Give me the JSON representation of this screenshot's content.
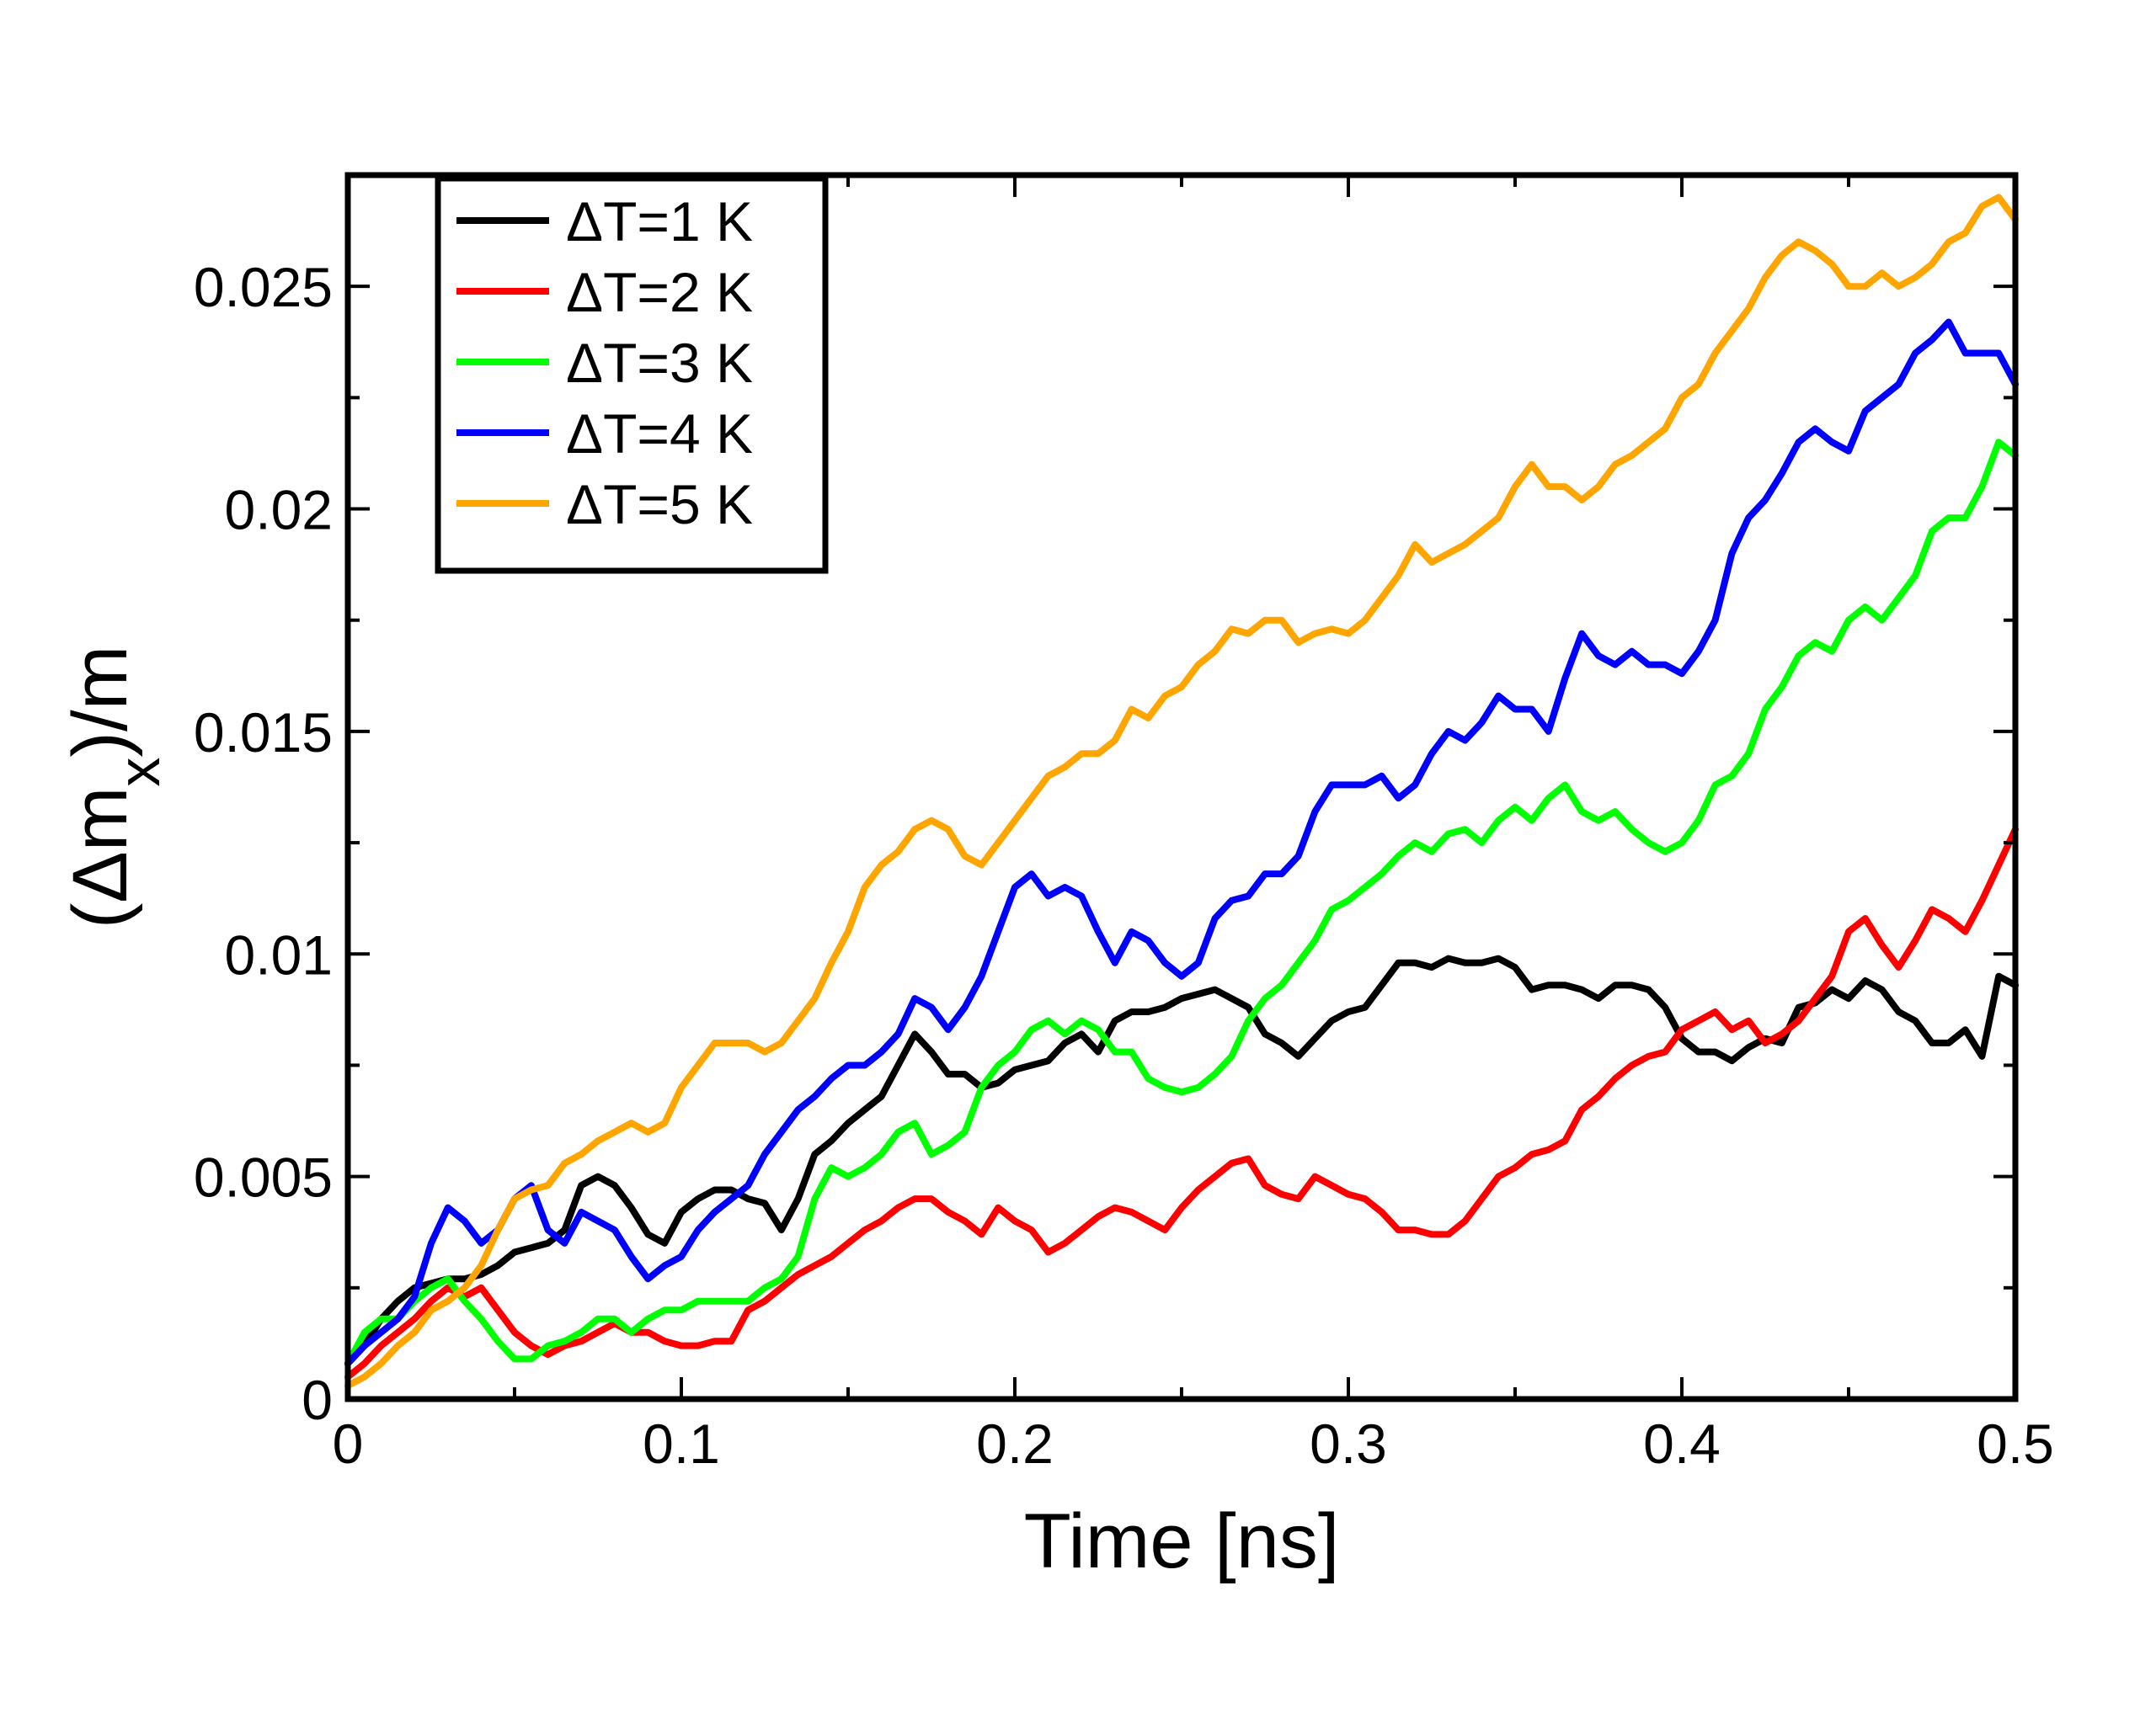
{
  "chart_data": {
    "type": "line",
    "title": "",
    "xlabel": "Time [ns]",
    "ylabel_parts": [
      "(Δm",
      "x",
      ")/m"
    ],
    "xlim": [
      0,
      0.5
    ],
    "ylim": [
      0,
      0.0275
    ],
    "x_ticks": [
      {
        "v": 0,
        "label": "0"
      },
      {
        "v": 0.1,
        "label": "0.1"
      },
      {
        "v": 0.2,
        "label": "0.2"
      },
      {
        "v": 0.3,
        "label": "0.3"
      },
      {
        "v": 0.4,
        "label": "0.4"
      },
      {
        "v": 0.5,
        "label": "0.5"
      }
    ],
    "y_ticks": [
      {
        "v": 0,
        "label": "0"
      },
      {
        "v": 0.005,
        "label": "0.005"
      },
      {
        "v": 0.01,
        "label": "0.01"
      },
      {
        "v": 0.015,
        "label": "0.015"
      },
      {
        "v": 0.02,
        "label": "0.02"
      },
      {
        "v": 0.025,
        "label": "0.025"
      }
    ],
    "x_minor": 0.05,
    "y_minor": 0.0025,
    "grid": false,
    "legend_position": "top-left",
    "series": [
      {
        "name": "ΔT=1 K",
        "color": "#000000",
        "x": [
          0,
          0.005,
          0.01,
          0.015,
          0.02,
          0.025,
          0.03,
          0.035,
          0.04,
          0.045,
          0.05,
          0.055,
          0.06,
          0.065,
          0.07,
          0.075,
          0.08,
          0.085,
          0.09,
          0.095,
          0.1,
          0.105,
          0.11,
          0.115,
          0.12,
          0.125,
          0.13,
          0.135,
          0.14,
          0.145,
          0.15,
          0.155,
          0.16,
          0.165,
          0.17,
          0.175,
          0.18,
          0.185,
          0.19,
          0.195,
          0.2,
          0.205,
          0.21,
          0.215,
          0.22,
          0.225,
          0.23,
          0.235,
          0.24,
          0.245,
          0.25,
          0.255,
          0.26,
          0.265,
          0.27,
          0.275,
          0.28,
          0.285,
          0.29,
          0.295,
          0.3,
          0.305,
          0.31,
          0.315,
          0.32,
          0.325,
          0.33,
          0.335,
          0.34,
          0.345,
          0.35,
          0.355,
          0.36,
          0.365,
          0.37,
          0.375,
          0.38,
          0.385,
          0.39,
          0.395,
          0.4,
          0.405,
          0.41,
          0.415,
          0.42,
          0.425,
          0.43,
          0.435,
          0.44,
          0.445,
          0.45,
          0.455,
          0.46,
          0.465,
          0.47,
          0.475,
          0.48,
          0.485,
          0.49,
          0.495,
          0.5
        ],
        "y": [
          0.0008,
          0.0012,
          0.0018,
          0.0022,
          0.0025,
          0.0026,
          0.0027,
          0.0027,
          0.0028,
          0.003,
          0.0033,
          0.0034,
          0.0035,
          0.0038,
          0.0048,
          0.005,
          0.0048,
          0.0043,
          0.0037,
          0.0035,
          0.0042,
          0.0045,
          0.0047,
          0.0047,
          0.0045,
          0.0044,
          0.0038,
          0.0045,
          0.0055,
          0.0058,
          0.0062,
          0.0065,
          0.0068,
          0.0075,
          0.0082,
          0.0078,
          0.0073,
          0.0073,
          0.007,
          0.0071,
          0.0074,
          0.0075,
          0.0076,
          0.008,
          0.0082,
          0.0078,
          0.0085,
          0.0087,
          0.0087,
          0.0088,
          0.009,
          0.0091,
          0.0092,
          0.009,
          0.0088,
          0.0082,
          0.008,
          0.0077,
          0.0081,
          0.0085,
          0.0087,
          0.0088,
          0.0093,
          0.0098,
          0.0098,
          0.0097,
          0.0099,
          0.0098,
          0.0098,
          0.0099,
          0.0097,
          0.0092,
          0.0093,
          0.0093,
          0.0092,
          0.009,
          0.0093,
          0.0093,
          0.0092,
          0.0088,
          0.0081,
          0.0078,
          0.0078,
          0.0076,
          0.0079,
          0.0081,
          0.008,
          0.0088,
          0.0089,
          0.0092,
          0.009,
          0.0094,
          0.0092,
          0.0087,
          0.0085,
          0.008,
          0.008,
          0.0083,
          0.0077,
          0.0095,
          0.0093
        ]
      },
      {
        "name": "ΔT=2 K",
        "color": "#ff0000",
        "x": [
          0,
          0.005,
          0.01,
          0.015,
          0.02,
          0.025,
          0.03,
          0.035,
          0.04,
          0.045,
          0.05,
          0.055,
          0.06,
          0.065,
          0.07,
          0.075,
          0.08,
          0.085,
          0.09,
          0.095,
          0.1,
          0.105,
          0.11,
          0.115,
          0.12,
          0.125,
          0.13,
          0.135,
          0.14,
          0.145,
          0.15,
          0.155,
          0.16,
          0.165,
          0.17,
          0.175,
          0.18,
          0.185,
          0.19,
          0.195,
          0.2,
          0.205,
          0.21,
          0.215,
          0.22,
          0.225,
          0.23,
          0.235,
          0.24,
          0.245,
          0.25,
          0.255,
          0.26,
          0.265,
          0.27,
          0.275,
          0.28,
          0.285,
          0.29,
          0.295,
          0.3,
          0.305,
          0.31,
          0.315,
          0.32,
          0.325,
          0.33,
          0.335,
          0.34,
          0.345,
          0.35,
          0.355,
          0.36,
          0.365,
          0.37,
          0.375,
          0.38,
          0.385,
          0.39,
          0.395,
          0.4,
          0.405,
          0.41,
          0.415,
          0.42,
          0.425,
          0.43,
          0.435,
          0.44,
          0.445,
          0.45,
          0.455,
          0.46,
          0.465,
          0.47,
          0.475,
          0.48,
          0.485,
          0.49,
          0.495,
          0.5
        ],
        "y": [
          0.0005,
          0.0008,
          0.0012,
          0.0015,
          0.0018,
          0.0022,
          0.0025,
          0.0023,
          0.0025,
          0.002,
          0.0015,
          0.0012,
          0.001,
          0.0012,
          0.0013,
          0.0015,
          0.0017,
          0.0015,
          0.0015,
          0.0013,
          0.0012,
          0.0012,
          0.0013,
          0.0013,
          0.002,
          0.0022,
          0.0025,
          0.0028,
          0.003,
          0.0032,
          0.0035,
          0.0038,
          0.004,
          0.0043,
          0.0045,
          0.0045,
          0.0042,
          0.004,
          0.0037,
          0.0043,
          0.004,
          0.0038,
          0.0033,
          0.0035,
          0.0038,
          0.0041,
          0.0043,
          0.0042,
          0.004,
          0.0038,
          0.0043,
          0.0047,
          0.005,
          0.0053,
          0.0054,
          0.0048,
          0.0046,
          0.0045,
          0.005,
          0.0048,
          0.0046,
          0.0045,
          0.0042,
          0.0038,
          0.0038,
          0.0037,
          0.0037,
          0.004,
          0.0045,
          0.005,
          0.0052,
          0.0055,
          0.0056,
          0.0058,
          0.0065,
          0.0068,
          0.0072,
          0.0075,
          0.0077,
          0.0078,
          0.0083,
          0.0085,
          0.0087,
          0.0083,
          0.0085,
          0.008,
          0.0082,
          0.0085,
          0.009,
          0.0095,
          0.0105,
          0.0108,
          0.0102,
          0.0097,
          0.0103,
          0.011,
          0.0108,
          0.0105,
          0.0112,
          0.012,
          0.0128
        ]
      },
      {
        "name": "ΔT=3 K",
        "color": "#00ff00",
        "x": [
          0,
          0.005,
          0.01,
          0.015,
          0.02,
          0.025,
          0.03,
          0.035,
          0.04,
          0.045,
          0.05,
          0.055,
          0.06,
          0.065,
          0.07,
          0.075,
          0.08,
          0.085,
          0.09,
          0.095,
          0.1,
          0.105,
          0.11,
          0.115,
          0.12,
          0.125,
          0.13,
          0.135,
          0.14,
          0.145,
          0.15,
          0.155,
          0.16,
          0.165,
          0.17,
          0.175,
          0.18,
          0.185,
          0.19,
          0.195,
          0.2,
          0.205,
          0.21,
          0.215,
          0.22,
          0.225,
          0.23,
          0.235,
          0.24,
          0.245,
          0.25,
          0.255,
          0.26,
          0.265,
          0.27,
          0.275,
          0.28,
          0.285,
          0.29,
          0.295,
          0.3,
          0.305,
          0.31,
          0.315,
          0.32,
          0.325,
          0.33,
          0.335,
          0.34,
          0.345,
          0.35,
          0.355,
          0.36,
          0.365,
          0.37,
          0.375,
          0.38,
          0.385,
          0.39,
          0.395,
          0.4,
          0.405,
          0.41,
          0.415,
          0.42,
          0.425,
          0.43,
          0.435,
          0.44,
          0.445,
          0.45,
          0.455,
          0.46,
          0.465,
          0.47,
          0.475,
          0.48,
          0.485,
          0.49,
          0.495,
          0.5
        ],
        "y": [
          0.0008,
          0.0015,
          0.0018,
          0.0018,
          0.0022,
          0.0025,
          0.0027,
          0.0022,
          0.0018,
          0.0013,
          0.0009,
          0.0009,
          0.0012,
          0.0013,
          0.0015,
          0.0018,
          0.0018,
          0.0015,
          0.0018,
          0.002,
          0.002,
          0.0022,
          0.0022,
          0.0022,
          0.0022,
          0.0025,
          0.0027,
          0.0032,
          0.0045,
          0.0052,
          0.005,
          0.0052,
          0.0055,
          0.006,
          0.0062,
          0.0055,
          0.0057,
          0.006,
          0.007,
          0.0075,
          0.0078,
          0.0083,
          0.0085,
          0.0082,
          0.0085,
          0.0083,
          0.0078,
          0.0078,
          0.0072,
          0.007,
          0.0069,
          0.007,
          0.0073,
          0.0077,
          0.0085,
          0.009,
          0.0093,
          0.0098,
          0.0103,
          0.011,
          0.0112,
          0.0115,
          0.0118,
          0.0122,
          0.0125,
          0.0123,
          0.0127,
          0.0128,
          0.0125,
          0.013,
          0.0133,
          0.013,
          0.0135,
          0.0138,
          0.0132,
          0.013,
          0.0132,
          0.0128,
          0.0125,
          0.0123,
          0.0125,
          0.013,
          0.0138,
          0.014,
          0.0145,
          0.0155,
          0.016,
          0.0167,
          0.017,
          0.0168,
          0.0175,
          0.0178,
          0.0175,
          0.018,
          0.0185,
          0.0195,
          0.0198,
          0.0198,
          0.0205,
          0.0215,
          0.0212
        ]
      },
      {
        "name": "ΔT=4 K",
        "color": "#0000ff",
        "x": [
          0,
          0.005,
          0.01,
          0.015,
          0.02,
          0.025,
          0.03,
          0.035,
          0.04,
          0.045,
          0.05,
          0.055,
          0.06,
          0.065,
          0.07,
          0.075,
          0.08,
          0.085,
          0.09,
          0.095,
          0.1,
          0.105,
          0.11,
          0.115,
          0.12,
          0.125,
          0.13,
          0.135,
          0.14,
          0.145,
          0.15,
          0.155,
          0.16,
          0.165,
          0.17,
          0.175,
          0.18,
          0.185,
          0.19,
          0.195,
          0.2,
          0.205,
          0.21,
          0.215,
          0.22,
          0.225,
          0.23,
          0.235,
          0.24,
          0.245,
          0.25,
          0.255,
          0.26,
          0.265,
          0.27,
          0.275,
          0.28,
          0.285,
          0.29,
          0.295,
          0.3,
          0.305,
          0.31,
          0.315,
          0.32,
          0.325,
          0.33,
          0.335,
          0.34,
          0.345,
          0.35,
          0.355,
          0.36,
          0.365,
          0.37,
          0.375,
          0.38,
          0.385,
          0.39,
          0.395,
          0.4,
          0.405,
          0.41,
          0.415,
          0.42,
          0.425,
          0.43,
          0.435,
          0.44,
          0.445,
          0.45,
          0.455,
          0.46,
          0.465,
          0.47,
          0.475,
          0.48,
          0.485,
          0.49,
          0.495,
          0.5
        ],
        "y": [
          0.0008,
          0.0012,
          0.0015,
          0.0018,
          0.0023,
          0.0035,
          0.0043,
          0.004,
          0.0035,
          0.0038,
          0.0045,
          0.0048,
          0.0038,
          0.0035,
          0.0042,
          0.004,
          0.0038,
          0.0032,
          0.0027,
          0.003,
          0.0032,
          0.0038,
          0.0042,
          0.0045,
          0.0048,
          0.0055,
          0.006,
          0.0065,
          0.0068,
          0.0072,
          0.0075,
          0.0075,
          0.0078,
          0.0082,
          0.009,
          0.0088,
          0.0083,
          0.0088,
          0.0095,
          0.0105,
          0.0115,
          0.0118,
          0.0113,
          0.0115,
          0.0113,
          0.0105,
          0.0098,
          0.0105,
          0.0103,
          0.0098,
          0.0095,
          0.0098,
          0.0108,
          0.0112,
          0.0113,
          0.0118,
          0.0118,
          0.0122,
          0.0132,
          0.0138,
          0.0138,
          0.0138,
          0.014,
          0.0135,
          0.0138,
          0.0145,
          0.015,
          0.0148,
          0.0152,
          0.0158,
          0.0155,
          0.0155,
          0.015,
          0.0162,
          0.0172,
          0.0167,
          0.0165,
          0.0168,
          0.0165,
          0.0165,
          0.0163,
          0.0168,
          0.0175,
          0.019,
          0.0198,
          0.0202,
          0.0208,
          0.0215,
          0.0218,
          0.0215,
          0.0213,
          0.0222,
          0.0225,
          0.0228,
          0.0235,
          0.0238,
          0.0242,
          0.0235,
          0.0235,
          0.0235,
          0.0228
        ]
      },
      {
        "name": "ΔT=5 K",
        "color": "#ffa500",
        "x": [
          0,
          0.005,
          0.01,
          0.015,
          0.02,
          0.025,
          0.03,
          0.035,
          0.04,
          0.045,
          0.05,
          0.055,
          0.06,
          0.065,
          0.07,
          0.075,
          0.08,
          0.085,
          0.09,
          0.095,
          0.1,
          0.105,
          0.11,
          0.115,
          0.12,
          0.125,
          0.13,
          0.135,
          0.14,
          0.145,
          0.15,
          0.155,
          0.16,
          0.165,
          0.17,
          0.175,
          0.18,
          0.185,
          0.19,
          0.195,
          0.2,
          0.205,
          0.21,
          0.215,
          0.22,
          0.225,
          0.23,
          0.235,
          0.24,
          0.245,
          0.25,
          0.255,
          0.26,
          0.265,
          0.27,
          0.275,
          0.28,
          0.285,
          0.29,
          0.295,
          0.3,
          0.305,
          0.31,
          0.315,
          0.32,
          0.325,
          0.33,
          0.335,
          0.34,
          0.345,
          0.35,
          0.355,
          0.36,
          0.365,
          0.37,
          0.375,
          0.38,
          0.385,
          0.39,
          0.395,
          0.4,
          0.405,
          0.41,
          0.415,
          0.42,
          0.425,
          0.43,
          0.435,
          0.44,
          0.445,
          0.45,
          0.455,
          0.46,
          0.465,
          0.47,
          0.475,
          0.48,
          0.485,
          0.49,
          0.495,
          0.5
        ],
        "y": [
          0.0003,
          0.0005,
          0.0008,
          0.0012,
          0.0015,
          0.002,
          0.0022,
          0.0025,
          0.003,
          0.0038,
          0.0045,
          0.0047,
          0.0048,
          0.0053,
          0.0055,
          0.0058,
          0.006,
          0.0062,
          0.006,
          0.0062,
          0.007,
          0.0075,
          0.008,
          0.008,
          0.008,
          0.0078,
          0.008,
          0.0085,
          0.009,
          0.0098,
          0.0105,
          0.0115,
          0.012,
          0.0123,
          0.0128,
          0.013,
          0.0128,
          0.0122,
          0.012,
          0.0125,
          0.013,
          0.0135,
          0.014,
          0.0142,
          0.0145,
          0.0145,
          0.0148,
          0.0155,
          0.0153,
          0.0158,
          0.016,
          0.0165,
          0.0168,
          0.0173,
          0.0172,
          0.0175,
          0.0175,
          0.017,
          0.0172,
          0.0173,
          0.0172,
          0.0175,
          0.018,
          0.0185,
          0.0192,
          0.0188,
          0.019,
          0.0192,
          0.0195,
          0.0198,
          0.0205,
          0.021,
          0.0205,
          0.0205,
          0.0202,
          0.0205,
          0.021,
          0.0212,
          0.0215,
          0.0218,
          0.0225,
          0.0228,
          0.0235,
          0.024,
          0.0245,
          0.0252,
          0.0257,
          0.026,
          0.0258,
          0.0255,
          0.025,
          0.025,
          0.0253,
          0.025,
          0.0252,
          0.0255,
          0.026,
          0.0262,
          0.0268,
          0.027,
          0.0265
        ]
      }
    ]
  }
}
